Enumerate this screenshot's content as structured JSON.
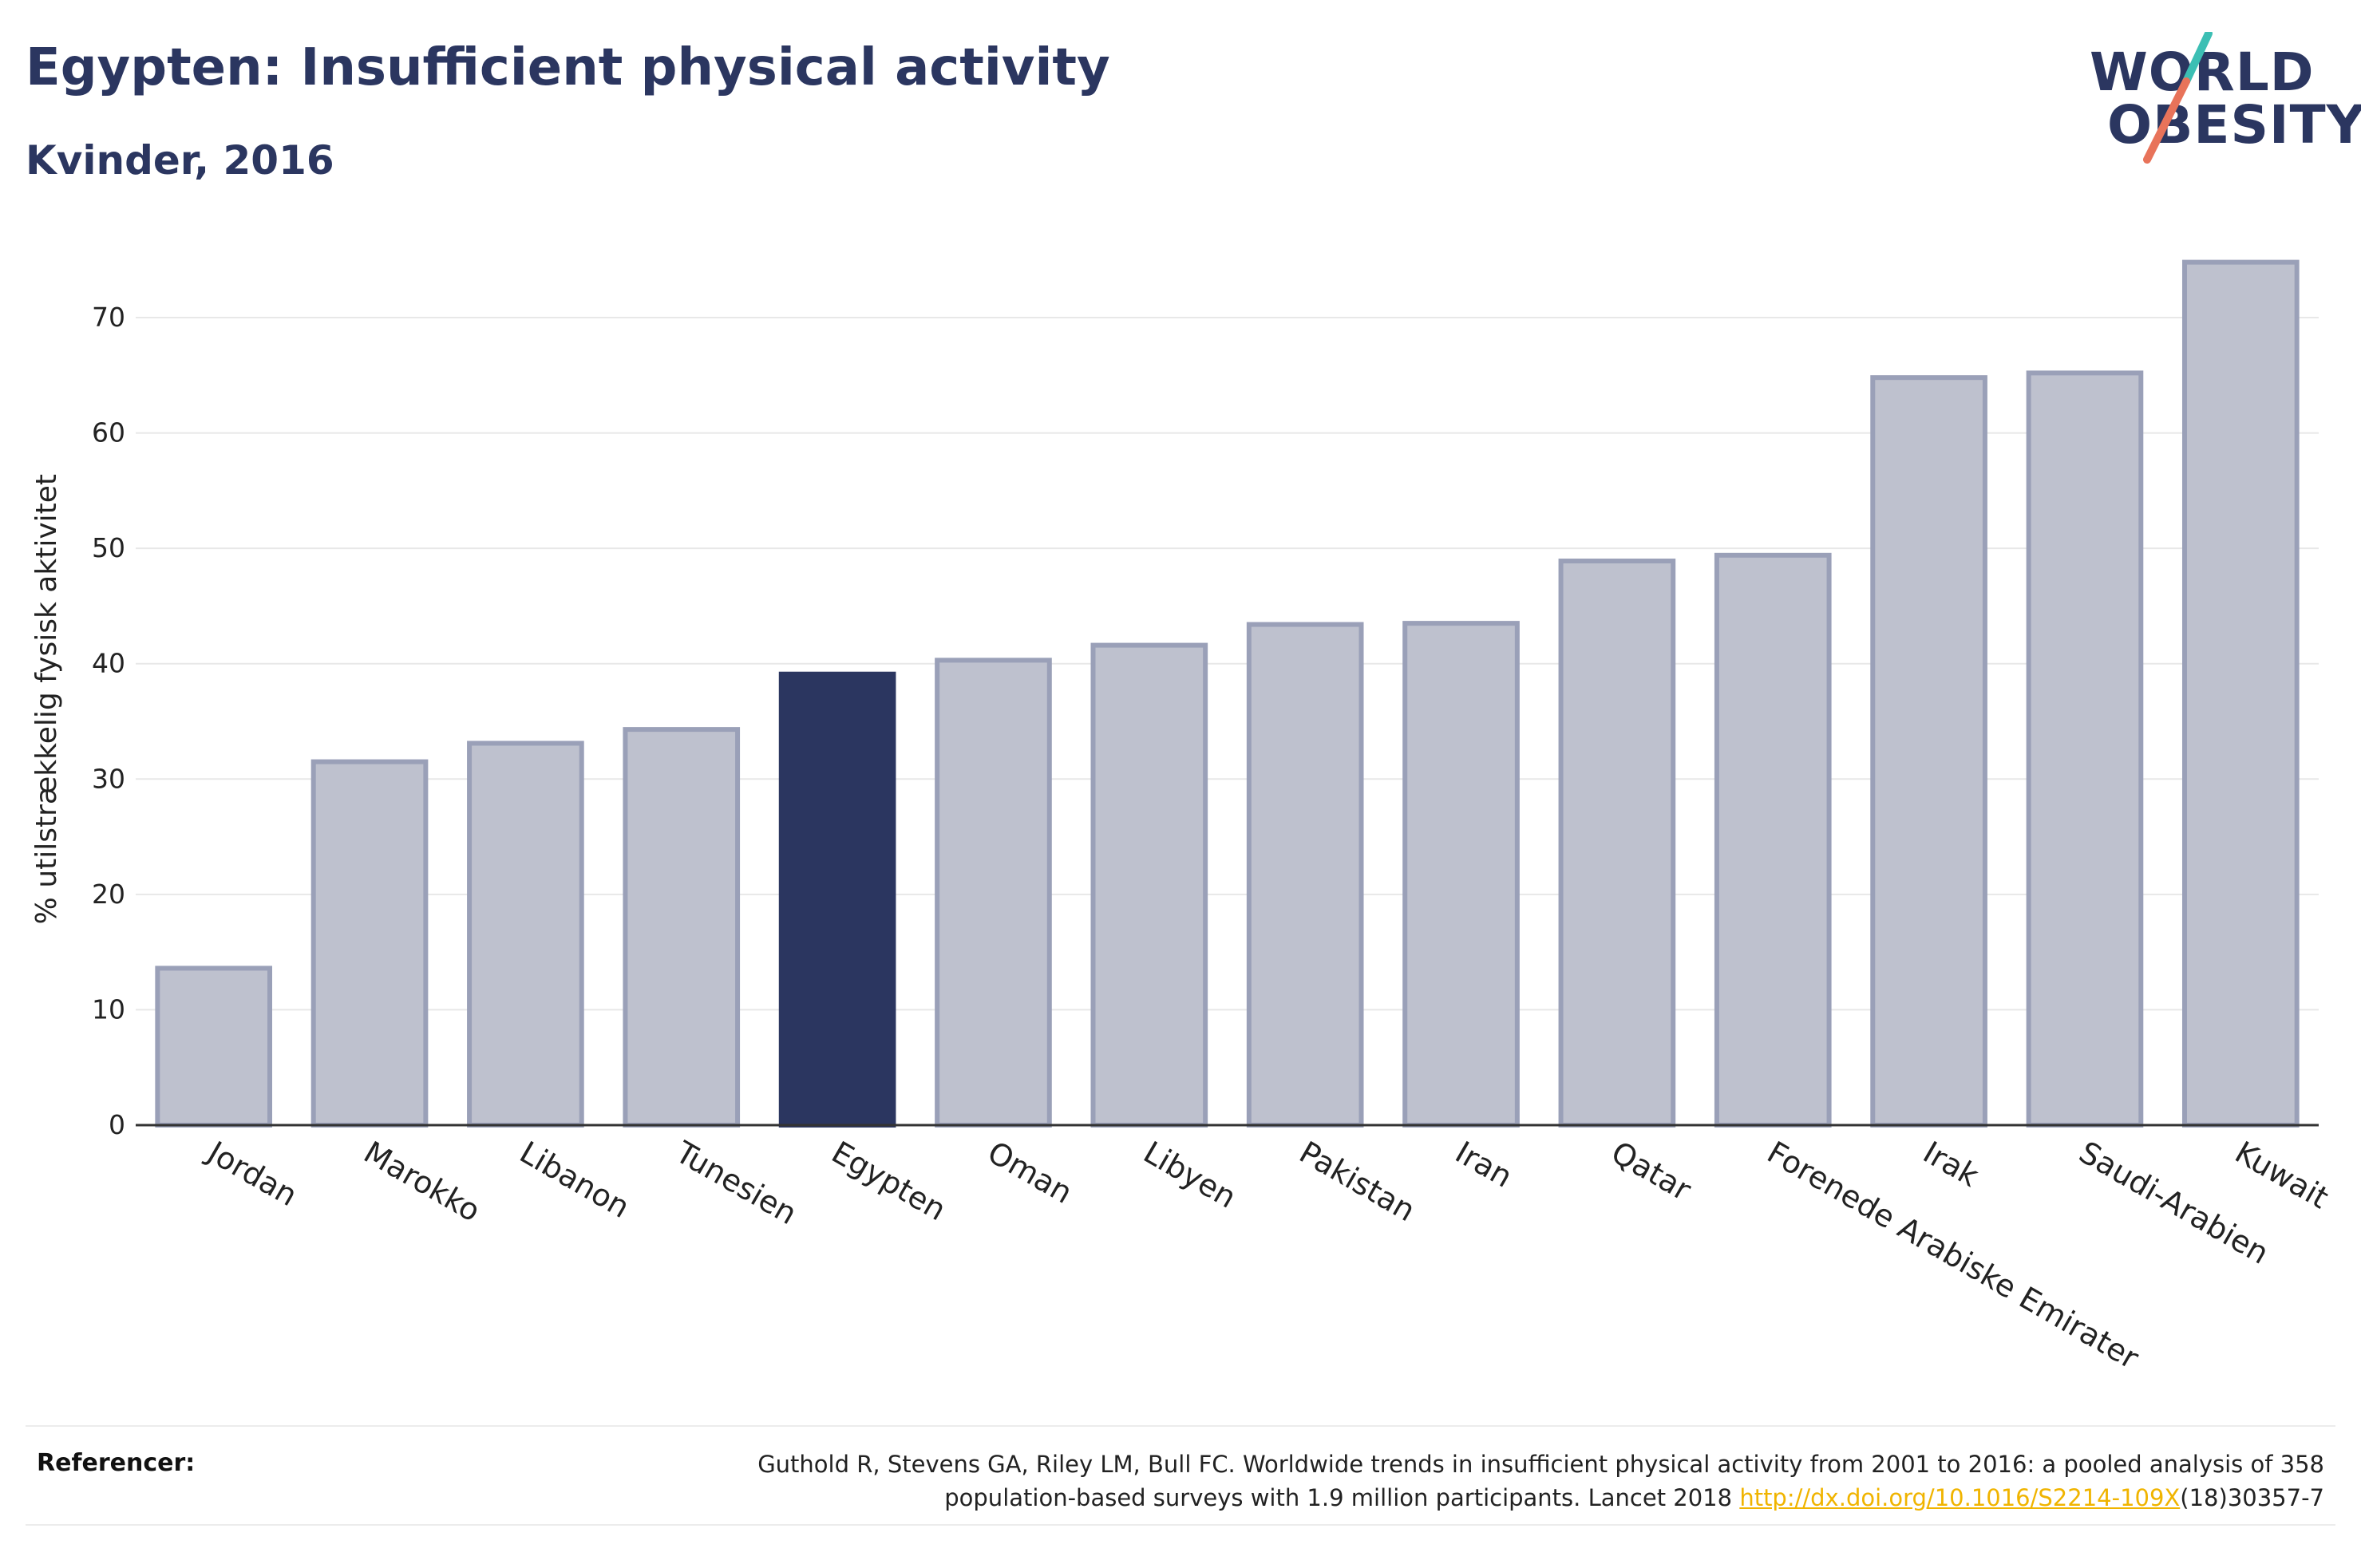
{
  "header": {
    "title": "Egypten: Insufficient physical activity",
    "subtitle": "Kvinder, 2016"
  },
  "logo": {
    "line1": "WORLD",
    "line2": "OBESITY"
  },
  "chart_data": {
    "type": "bar",
    "categories": [
      "Jordan",
      "Marokko",
      "Libanon",
      "Tunesien",
      "Egypten",
      "Oman",
      "Libyen",
      "Pakistan",
      "Iran",
      "Qatar",
      "Forenede Arabiske Emirater",
      "Irak",
      "Saudi-Arabien",
      "Kuwait"
    ],
    "values": [
      13.6,
      31.5,
      33.1,
      34.3,
      39.1,
      40.3,
      41.6,
      43.4,
      43.5,
      48.9,
      49.4,
      64.8,
      65.2,
      74.8
    ],
    "highlight": "Egypten",
    "xlabel": "",
    "ylabel": "% utilstrækkelig fysisk aktivitet",
    "ylim": [
      0,
      78
    ],
    "yticks": [
      0,
      10,
      20,
      30,
      40,
      50,
      60,
      70
    ],
    "grid": true,
    "colors": {
      "bar_fill": "#bec1ce",
      "bar_stroke": "#9aa0b8",
      "highlight_fill": "#2b3660",
      "grid": "#e8e8e8",
      "axis": "#333333"
    }
  },
  "references": {
    "label": "Referencer:",
    "text_part1": "Guthold R, Stevens GA, Riley LM, Bull FC. Worldwide trends in insufficient physical activity from 2001 to 2016: a pooled analysis of 358",
    "text_part2": "population-based surveys with 1.9 million participants. Lancet 2018",
    "link_text": "http://dx.doi.org/10.1016/S2214-109X",
    "text_part3": "(18)30357-7"
  }
}
